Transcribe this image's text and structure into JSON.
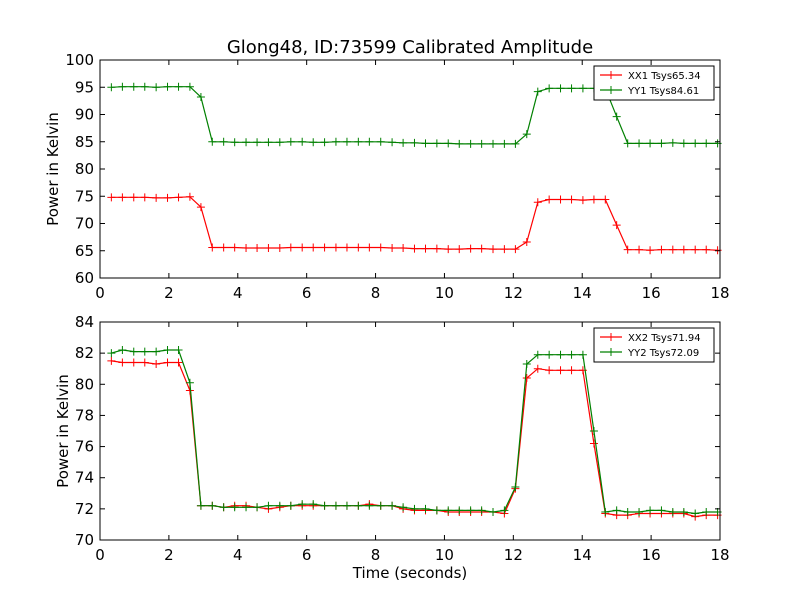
{
  "chart_data": [
    {
      "type": "line",
      "title": "Glong48, ID:73599 Calibrated Amplitude",
      "xlabel": "",
      "ylabel": "Power in Kelvin",
      "xlim": [
        0,
        18
      ],
      "ylim": [
        60,
        100
      ],
      "xticks": [
        0,
        2,
        4,
        6,
        8,
        10,
        12,
        14,
        16,
        18
      ],
      "yticks": [
        60,
        65,
        70,
        75,
        80,
        85,
        90,
        95,
        100
      ],
      "grid": false,
      "legend_position": "top-right",
      "marker": "+",
      "x": [
        0.33,
        0.65,
        0.98,
        1.3,
        1.63,
        1.96,
        2.28,
        2.61,
        2.93,
        3.26,
        3.59,
        3.91,
        4.24,
        4.56,
        4.89,
        5.22,
        5.54,
        5.87,
        6.19,
        6.52,
        6.85,
        7.17,
        7.5,
        7.82,
        8.15,
        8.48,
        8.8,
        9.13,
        9.45,
        9.78,
        10.11,
        10.43,
        10.76,
        11.08,
        11.41,
        11.74,
        12.06,
        12.39,
        12.71,
        13.04,
        13.37,
        13.69,
        14.02,
        14.34,
        14.67,
        15.0,
        15.32,
        15.65,
        15.97,
        16.3,
        16.63,
        16.95,
        17.28,
        17.6,
        17.93
      ],
      "series": [
        {
          "name": "XX1 Tsys65.34",
          "color": "#ff0000",
          "values": [
            74.8,
            74.8,
            74.8,
            74.8,
            74.7,
            74.7,
            74.8,
            74.9,
            73.0,
            65.6,
            65.6,
            65.6,
            65.5,
            65.5,
            65.5,
            65.5,
            65.6,
            65.6,
            65.6,
            65.6,
            65.6,
            65.6,
            65.6,
            65.6,
            65.6,
            65.5,
            65.5,
            65.4,
            65.4,
            65.4,
            65.3,
            65.3,
            65.4,
            65.4,
            65.3,
            65.3,
            65.3,
            66.6,
            73.9,
            74.4,
            74.4,
            74.4,
            74.3,
            74.4,
            74.4,
            69.7,
            65.2,
            65.2,
            65.1,
            65.2,
            65.2,
            65.2,
            65.2,
            65.2,
            65.1
          ]
        },
        {
          "name": "YY1 Tsys84.61",
          "color": "#008000",
          "values": [
            95.0,
            95.1,
            95.1,
            95.1,
            95.0,
            95.1,
            95.1,
            95.1,
            93.2,
            85.0,
            85.0,
            84.9,
            84.9,
            84.9,
            84.9,
            84.9,
            85.0,
            85.0,
            84.9,
            84.9,
            85.0,
            85.0,
            85.0,
            85.0,
            85.0,
            84.9,
            84.8,
            84.8,
            84.7,
            84.7,
            84.7,
            84.6,
            84.6,
            84.6,
            84.6,
            84.6,
            84.6,
            86.4,
            94.2,
            94.8,
            94.8,
            94.8,
            94.8,
            94.8,
            94.8,
            89.6,
            84.7,
            84.7,
            84.7,
            84.7,
            84.8,
            84.7,
            84.7,
            84.7,
            84.7
          ]
        }
      ]
    },
    {
      "type": "line",
      "title": "",
      "xlabel": "Time (seconds)",
      "ylabel": "Power in Kelvin",
      "xlim": [
        0,
        18
      ],
      "ylim": [
        70,
        84
      ],
      "xticks": [
        0,
        2,
        4,
        6,
        8,
        10,
        12,
        14,
        16,
        18
      ],
      "yticks": [
        70,
        72,
        74,
        76,
        78,
        80,
        82,
        84
      ],
      "grid": false,
      "legend_position": "top-right",
      "marker": "+",
      "x": [
        0.33,
        0.65,
        0.98,
        1.3,
        1.63,
        1.96,
        2.28,
        2.61,
        2.93,
        3.26,
        3.59,
        3.91,
        4.24,
        4.56,
        4.89,
        5.22,
        5.54,
        5.87,
        6.19,
        6.52,
        6.85,
        7.17,
        7.5,
        7.82,
        8.15,
        8.48,
        8.8,
        9.13,
        9.45,
        9.78,
        10.11,
        10.43,
        10.76,
        11.08,
        11.41,
        11.74,
        12.06,
        12.39,
        12.71,
        13.04,
        13.37,
        13.69,
        14.02,
        14.34,
        14.67,
        15.0,
        15.32,
        15.65,
        15.97,
        16.3,
        16.63,
        16.95,
        17.28,
        17.6,
        17.93
      ],
      "series": [
        {
          "name": "XX2 Tsys71.94",
          "color": "#ff0000",
          "values": [
            81.5,
            81.4,
            81.4,
            81.4,
            81.3,
            81.4,
            81.4,
            79.6,
            72.2,
            72.2,
            72.1,
            72.2,
            72.2,
            72.1,
            72.0,
            72.1,
            72.2,
            72.2,
            72.2,
            72.2,
            72.2,
            72.2,
            72.2,
            72.3,
            72.2,
            72.2,
            72.0,
            71.9,
            71.9,
            71.9,
            71.8,
            71.8,
            71.8,
            71.8,
            71.8,
            71.7,
            73.3,
            80.4,
            81.0,
            80.9,
            80.9,
            80.9,
            80.9,
            76.2,
            71.7,
            71.6,
            71.6,
            71.7,
            71.7,
            71.7,
            71.7,
            71.7,
            71.5,
            71.6,
            71.6
          ]
        },
        {
          "name": "YY2 Tsys72.09",
          "color": "#008000",
          "values": [
            82.0,
            82.2,
            82.1,
            82.1,
            82.1,
            82.2,
            82.2,
            80.1,
            72.2,
            72.2,
            72.1,
            72.1,
            72.1,
            72.1,
            72.2,
            72.2,
            72.2,
            72.3,
            72.3,
            72.2,
            72.2,
            72.2,
            72.2,
            72.2,
            72.2,
            72.2,
            72.1,
            72.0,
            72.0,
            71.9,
            71.9,
            71.9,
            71.9,
            71.9,
            71.8,
            71.9,
            73.4,
            81.3,
            81.9,
            81.9,
            81.9,
            81.9,
            81.9,
            77.0,
            71.8,
            71.9,
            71.8,
            71.8,
            71.9,
            71.9,
            71.8,
            71.8,
            71.7,
            71.8,
            71.8
          ]
        }
      ]
    }
  ]
}
